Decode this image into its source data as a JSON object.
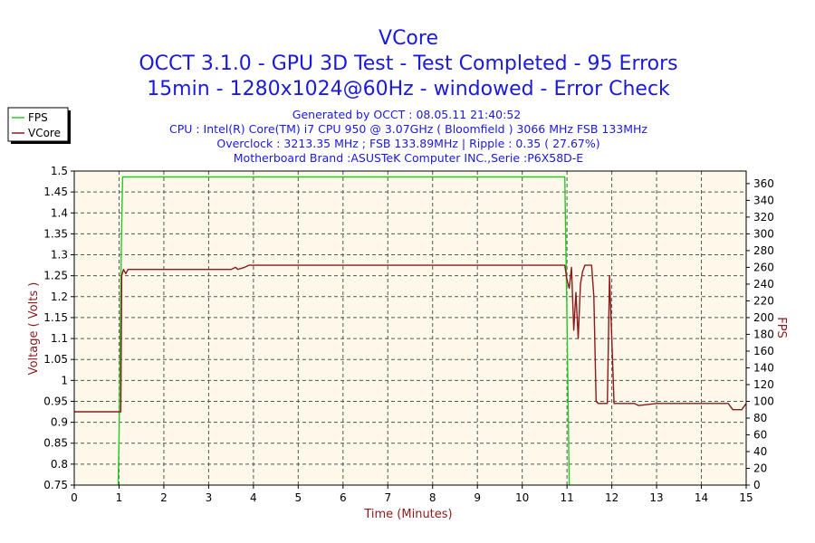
{
  "chart_data": {
    "type": "line",
    "title_lines": [
      "VCore",
      "OCCT 3.1.0 - GPU 3D Test - Test Completed - 95 Errors",
      "15min - 1280x1024@60Hz - windowed - Error Check"
    ],
    "info_lines": [
      "Generated by OCCT : 08.05.11 21:40:52",
      "CPU : Intel(R) Core(TM) i7 CPU 950 @ 3.07GHz ( Bloomfield ) 3066 MHz FSB 133MHz",
      "Overclock : 3213.35 MHz ; FSB 133.89MHz | Ripple : 0.35 ( 27.67%)",
      "Motherboard Brand :ASUSTeK Computer INC.,Serie :P6X58D-E"
    ],
    "xlabel": "Time (Minutes)",
    "ylabel_left": "Voltage ( Volts )",
    "ylabel_right": "FPS",
    "xlim": [
      0,
      15
    ],
    "ylim_left": [
      0.75,
      1.5
    ],
    "ylim_right": [
      0,
      375
    ],
    "x_ticks": [
      "0",
      "1",
      "2",
      "3",
      "4",
      "5",
      "6",
      "7",
      "8",
      "9",
      "10",
      "11",
      "12",
      "13",
      "14",
      "15"
    ],
    "y_left_ticks": [
      "0.75",
      "0.8",
      "0.85",
      "0.9",
      "0.95",
      "1",
      "1.05",
      "1.1",
      "1.15",
      "1.2",
      "1.25",
      "1.3",
      "1.35",
      "1.4",
      "1.45",
      "1.5"
    ],
    "y_right_ticks": [
      "0",
      "20",
      "40",
      "60",
      "80",
      "100",
      "120",
      "140",
      "160",
      "180",
      "200",
      "220",
      "240",
      "260",
      "280",
      "300",
      "320",
      "340",
      "360"
    ],
    "grid": true,
    "legend_position": "top-left",
    "series": [
      {
        "name": "FPS",
        "axis": "right",
        "color": "#22cc22",
        "x": [
          0.98,
          1.0,
          1.05,
          1.08,
          1.5,
          2,
          3,
          4,
          5,
          6,
          7,
          8,
          9,
          10,
          10.5,
          10.9,
          10.95,
          11.0,
          11.05
        ],
        "y": [
          0,
          60,
          280,
          368,
          368,
          368,
          368,
          368,
          368,
          368,
          368,
          368,
          368,
          368,
          368,
          368,
          368,
          200,
          0
        ]
      },
      {
        "name": "VCore",
        "axis": "left",
        "color": "#8b1a1a",
        "x": [
          0,
          0.5,
          1.0,
          1.04,
          1.06,
          1.1,
          1.15,
          1.2,
          2,
          3,
          3.5,
          3.6,
          3.65,
          3.8,
          3.9,
          4,
          5,
          6,
          7,
          8,
          9,
          10,
          10.5,
          10.9,
          10.95,
          11.0,
          11.05,
          11.1,
          11.15,
          11.2,
          11.25,
          11.3,
          11.35,
          11.4,
          11.45,
          11.5,
          11.55,
          11.6,
          11.65,
          11.7,
          11.8,
          11.9,
          11.95,
          12.0,
          12.05,
          12.5,
          12.6,
          13,
          14,
          14.6,
          14.7,
          14.9,
          15.0
        ],
        "y": [
          0.925,
          0.925,
          0.925,
          0.925,
          1.25,
          1.265,
          1.255,
          1.265,
          1.265,
          1.265,
          1.265,
          1.27,
          1.265,
          1.27,
          1.275,
          1.275,
          1.275,
          1.275,
          1.275,
          1.275,
          1.275,
          1.275,
          1.275,
          1.275,
          1.275,
          1.24,
          1.22,
          1.27,
          1.12,
          1.21,
          1.1,
          1.23,
          1.26,
          1.275,
          1.275,
          1.275,
          1.275,
          1.2,
          0.95,
          0.945,
          0.945,
          0.945,
          1.25,
          1.1,
          0.945,
          0.945,
          0.94,
          0.945,
          0.945,
          0.945,
          0.93,
          0.93,
          0.945
        ]
      }
    ]
  }
}
